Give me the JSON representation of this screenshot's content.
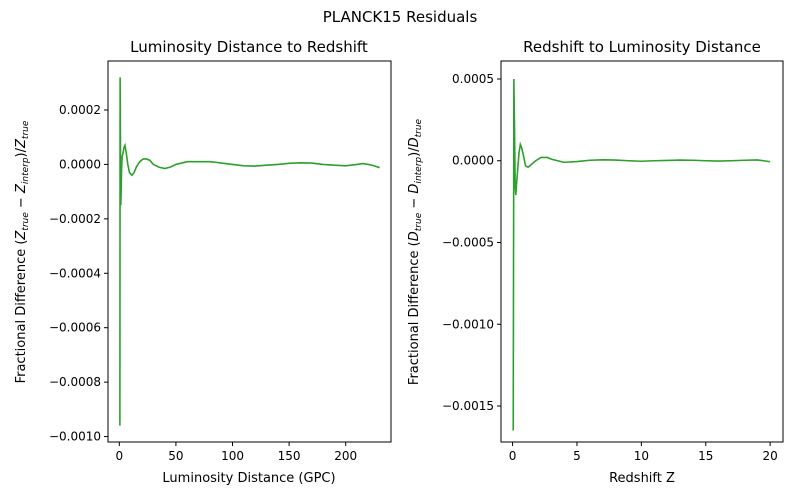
{
  "suptitle": "PLANCK15 Residuals",
  "line_color": "#2ca02c",
  "chart_data": [
    {
      "type": "line",
      "title": "Luminosity Distance to Redshift",
      "xlabel": "Luminosity Distance (GPC)",
      "ylabel": "Fractional Difference (Z_true − Z_interp)/Z_true",
      "xlim": [
        -10,
        240
      ],
      "ylim": [
        -0.00102,
        0.00038
      ],
      "xticks": [
        0,
        50,
        100,
        150,
        200
      ],
      "xtick_labels": [
        "0",
        "50",
        "100",
        "150",
        "200"
      ],
      "yticks": [
        -0.001,
        -0.0008,
        -0.0006,
        -0.0004,
        -0.0002,
        0.0,
        0.0002
      ],
      "ytick_labels": [
        "−0.0010",
        "−0.0008",
        "−0.0006",
        "−0.0004",
        "−0.0002",
        "0.0000",
        "0.0002"
      ],
      "grid": false,
      "series": [
        {
          "x": [
            0.5,
            0.7,
            0.9,
            1.1,
            1.3,
            1.6,
            2.0,
            2.5,
            3.2,
            4.0,
            5.0,
            6.2,
            7.5,
            9.0,
            11,
            13,
            15,
            18,
            21,
            24,
            27,
            30,
            35,
            40,
            45,
            50,
            55,
            60,
            70,
            80,
            85,
            90,
            100,
            110,
            120,
            130,
            140,
            150,
            160,
            170,
            180,
            190,
            200,
            210,
            215,
            220,
            225,
            230
          ],
          "y": [
            -0.00096,
            0.00032,
            0.0002,
            -0.0001,
            -0.00015,
            -0.0001,
            -2e-05,
            3e-05,
            4e-05,
            6e-05,
            7e-05,
            4e-05,
            0.0,
            -3e-05,
            -4e-05,
            -3e-05,
            -1e-05,
            1e-05,
            2e-05,
            2e-05,
            1.5e-05,
            0.0,
            -1e-05,
            -1.5e-05,
            -1e-05,
            0.0,
            5e-06,
            1e-05,
            1e-05,
            1e-05,
            8e-06,
            5e-06,
            0.0,
            -5e-06,
            -6e-06,
            -3e-06,
            0.0,
            4e-06,
            6e-06,
            5e-06,
            0.0,
            -3e-06,
            -5e-06,
            0.0,
            3e-06,
            0.0,
            -5e-06,
            -1.2e-05
          ]
        }
      ]
    },
    {
      "type": "line",
      "title": "Redshift to Luminosity Distance",
      "xlabel": "Redshift Z",
      "ylabel": "Fractional Difference (D_true − D_interp)/D_true",
      "xlim": [
        -0.9,
        21.0
      ],
      "ylim": [
        -0.00172,
        0.00061
      ],
      "xticks": [
        0,
        5,
        10,
        15,
        20
      ],
      "xtick_labels": [
        "0",
        "5",
        "10",
        "15",
        "20"
      ],
      "yticks": [
        -0.0015,
        -0.001,
        -0.0005,
        0.0,
        0.0005
      ],
      "ytick_labels": [
        "−0.0015",
        "−0.0010",
        "−0.0005",
        "0.0000",
        "0.0005"
      ],
      "grid": false,
      "series": [
        {
          "x": [
            0.05,
            0.1,
            0.15,
            0.2,
            0.25,
            0.3,
            0.4,
            0.5,
            0.6,
            0.7,
            0.85,
            1.0,
            1.2,
            1.5,
            1.8,
            2.2,
            2.7,
            3.0,
            3.5,
            4.0,
            5.0,
            6.0,
            7.0,
            8.0,
            9.0,
            10.0,
            11.0,
            12.0,
            13.0,
            14.0,
            15.0,
            16.0,
            17.0,
            18.0,
            19.0,
            19.5,
            20.0
          ],
          "y": [
            -0.00165,
            0.0005,
            0.0002,
            -0.00015,
            -0.00021,
            -0.00015,
            -5e-05,
            5e-05,
            0.0001,
            8e-05,
            3e-05,
            -3e-05,
            -4e-05,
            -2e-05,
            0.0,
            2e-05,
            2e-05,
            1e-05,
            0.0,
            -1e-05,
            -5e-06,
            3e-06,
            6e-06,
            4e-06,
            0.0,
            -3e-06,
            0.0,
            2e-06,
            4e-06,
            3e-06,
            0.0,
            -2e-06,
            0.0,
            3e-06,
            5e-06,
            0.0,
            -6e-06
          ]
        }
      ]
    }
  ]
}
